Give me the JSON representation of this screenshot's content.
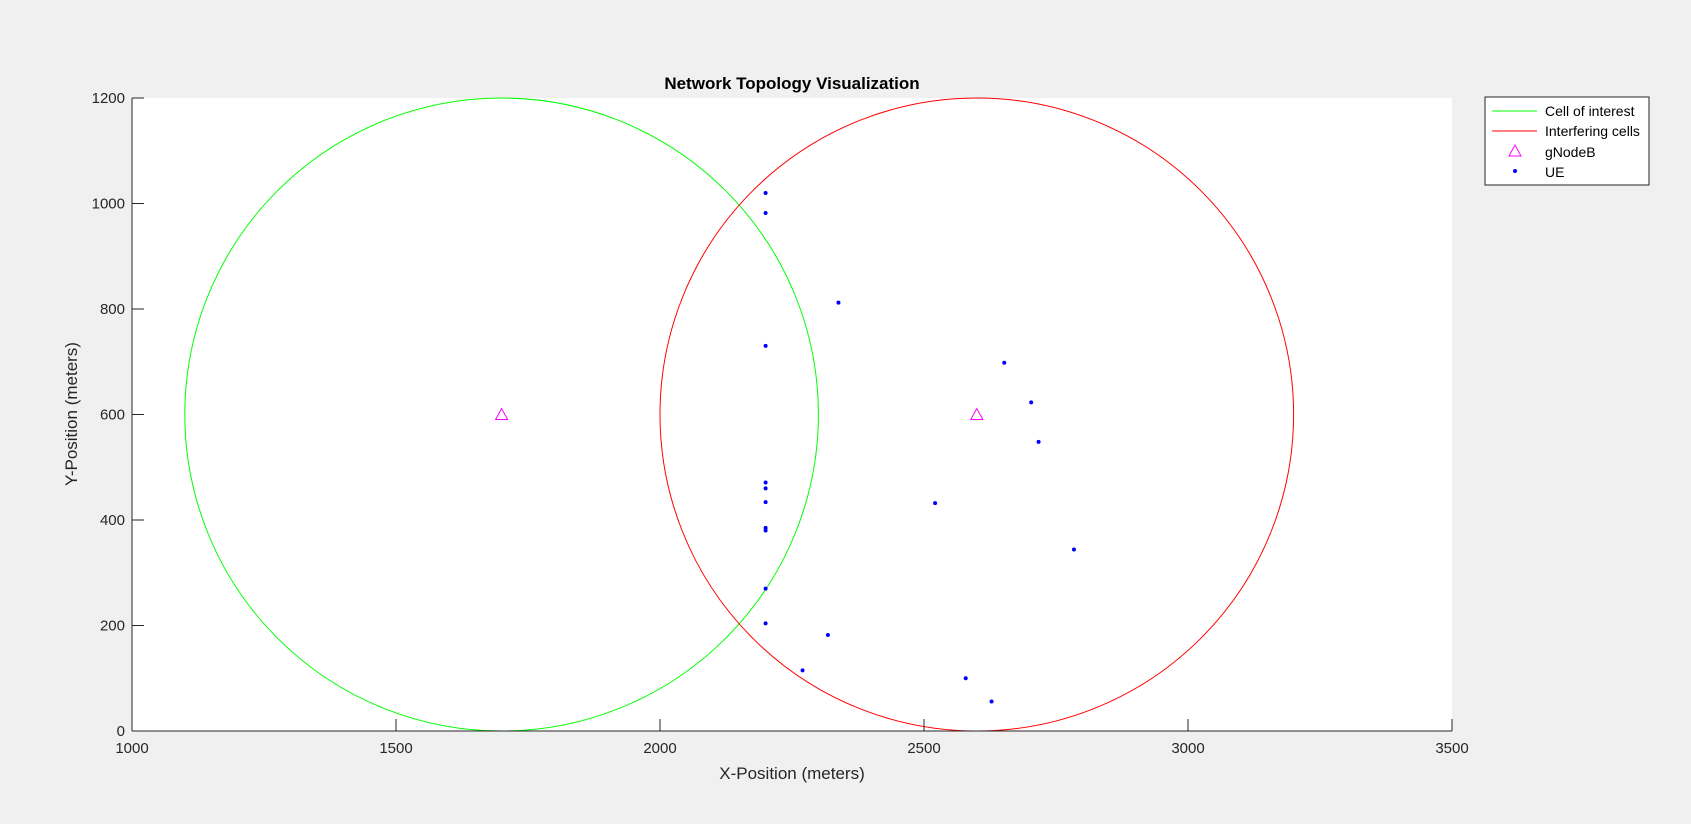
{
  "chart_data": {
    "type": "scatter",
    "title": "Network Topology Visualization",
    "xlabel": "X-Position (meters)",
    "ylabel": "Y-Position (meters)",
    "xlim": [
      1000,
      3500
    ],
    "ylim": [
      0,
      1200
    ],
    "xticks": [
      1000,
      1500,
      2000,
      2500,
      3000,
      3500
    ],
    "yticks": [
      0,
      200,
      400,
      600,
      800,
      1000,
      1200
    ],
    "grid": false,
    "legend_position": "outside-top-right",
    "legend": [
      {
        "label": "Cell of interest",
        "marker": "line",
        "color": "#00ff00"
      },
      {
        "label": "Interfering cells",
        "marker": "line",
        "color": "#ff0000"
      },
      {
        "label": "gNodeB",
        "marker": "triangle",
        "color": "#ff00ff"
      },
      {
        "label": "UE",
        "marker": "dot",
        "color": "#0000ff"
      }
    ],
    "cells": [
      {
        "series": "Cell of interest",
        "center": [
          1700,
          600
        ],
        "radius": 600,
        "color": "#00ff00"
      },
      {
        "series": "Interfering cells",
        "center": [
          2600,
          600
        ],
        "radius": 600,
        "color": "#ff0000"
      }
    ],
    "gnodeb": [
      {
        "x": 1700,
        "y": 600
      },
      {
        "x": 2600,
        "y": 600
      }
    ],
    "ue": [
      {
        "x": 2200,
        "y": 1020
      },
      {
        "x": 2200,
        "y": 982
      },
      {
        "x": 2338,
        "y": 812
      },
      {
        "x": 2200,
        "y": 730
      },
      {
        "x": 2652,
        "y": 698
      },
      {
        "x": 2703,
        "y": 623
      },
      {
        "x": 2717,
        "y": 548
      },
      {
        "x": 2200,
        "y": 471
      },
      {
        "x": 2200,
        "y": 460
      },
      {
        "x": 2200,
        "y": 434
      },
      {
        "x": 2521,
        "y": 432
      },
      {
        "x": 2200,
        "y": 385
      },
      {
        "x": 2200,
        "y": 380
      },
      {
        "x": 2784,
        "y": 344
      },
      {
        "x": 2200,
        "y": 270
      },
      {
        "x": 2200,
        "y": 204
      },
      {
        "x": 2318,
        "y": 182
      },
      {
        "x": 2270,
        "y": 115
      },
      {
        "x": 2579,
        "y": 100
      },
      {
        "x": 2628,
        "y": 56
      }
    ]
  }
}
